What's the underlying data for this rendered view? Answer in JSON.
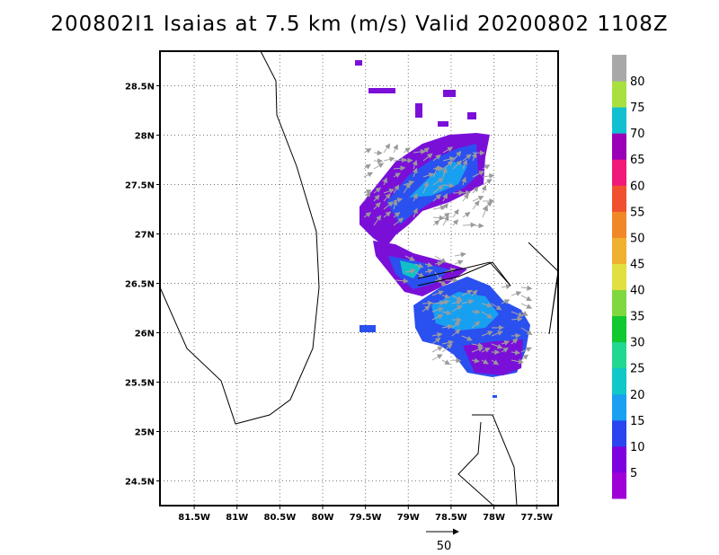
{
  "title": "200802I1 Isaias at 7.5 km (m/s) Valid 20200802  1108Z",
  "map": {
    "lon_range": [
      -81.9,
      -77.25
    ],
    "lat_range": [
      24.25,
      28.85
    ],
    "lon_ticks": [
      "81.5W",
      "81W",
      "80.5W",
      "80W",
      "79.5W",
      "79W",
      "78.5W",
      "78W",
      "77.5W"
    ],
    "lon_tick_values": [
      -81.5,
      -81,
      -80.5,
      -80,
      -79.5,
      -79,
      -78.5,
      -78,
      -77.5
    ],
    "lat_ticks": [
      "28.5N",
      "28N",
      "27.5N",
      "27N",
      "26.5N",
      "26N",
      "25.5N",
      "25N",
      "24.5N"
    ],
    "lat_tick_values": [
      28.5,
      28,
      27.5,
      27,
      26.5,
      26,
      25.5,
      25,
      24.5
    ],
    "grid": true,
    "coastline_color": "#000000"
  },
  "colorbar": {
    "labels": [
      "5",
      "10",
      "15",
      "20",
      "25",
      "30",
      "35",
      "40",
      "45",
      "50",
      "55",
      "60",
      "65",
      "70",
      "75",
      "80"
    ],
    "colors": [
      "#a000d8",
      "#7c00e0",
      "#2a44f0",
      "#1aa0f0",
      "#10c8c8",
      "#20d890",
      "#10c830",
      "#80d840",
      "#e0e040",
      "#f0b030",
      "#f08828",
      "#f05030",
      "#f01878",
      "#9a00b8",
      "#10c0d0",
      "#a8e040",
      "#a8a8a8"
    ]
  },
  "vector_reference": {
    "label": "50"
  }
}
